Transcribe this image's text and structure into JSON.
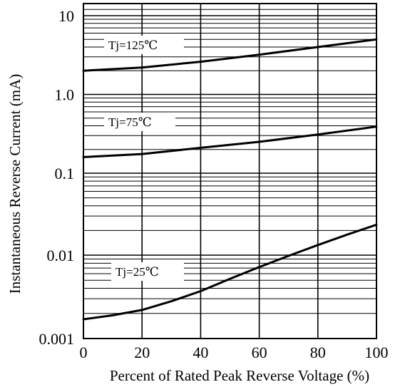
{
  "chart_data": {
    "type": "line",
    "title": "",
    "xlabel": "Percent of Rated Peak Reverse Voltage (%)",
    "ylabel": "Instantaneous Reverse Current (mA)",
    "x_scale": "linear",
    "y_scale": "log",
    "xlim": [
      0,
      100
    ],
    "ylim": [
      0.001,
      15
    ],
    "x_ticks": [
      0,
      20,
      40,
      60,
      80,
      100
    ],
    "x_tick_labels": [
      "0",
      "20",
      "40",
      "60",
      "80",
      "100"
    ],
    "y_ticks": [
      0.001,
      0.01,
      0.1,
      1.0,
      10
    ],
    "y_tick_labels": [
      "0.001",
      "0.01",
      "0.1",
      "1.0",
      "10"
    ],
    "grid": true,
    "line_color": "#000000",
    "series": [
      {
        "name": "Tj=125℃",
        "x": [
          0,
          20,
          40,
          60,
          80,
          100
        ],
        "y": [
          2.0,
          2.2,
          2.6,
          3.2,
          4.0,
          5.0
        ]
      },
      {
        "name": "Tj=75℃",
        "x": [
          0,
          20,
          40,
          60,
          80,
          100
        ],
        "y": [
          0.16,
          0.175,
          0.21,
          0.25,
          0.31,
          0.39
        ]
      },
      {
        "name": "Tj=25℃",
        "x": [
          0,
          10,
          20,
          30,
          40,
          50,
          60,
          70,
          80,
          90,
          100
        ],
        "y": [
          0.0017,
          0.0019,
          0.0022,
          0.0028,
          0.0037,
          0.0052,
          0.0072,
          0.0098,
          0.0133,
          0.0178,
          0.0235
        ]
      }
    ]
  }
}
